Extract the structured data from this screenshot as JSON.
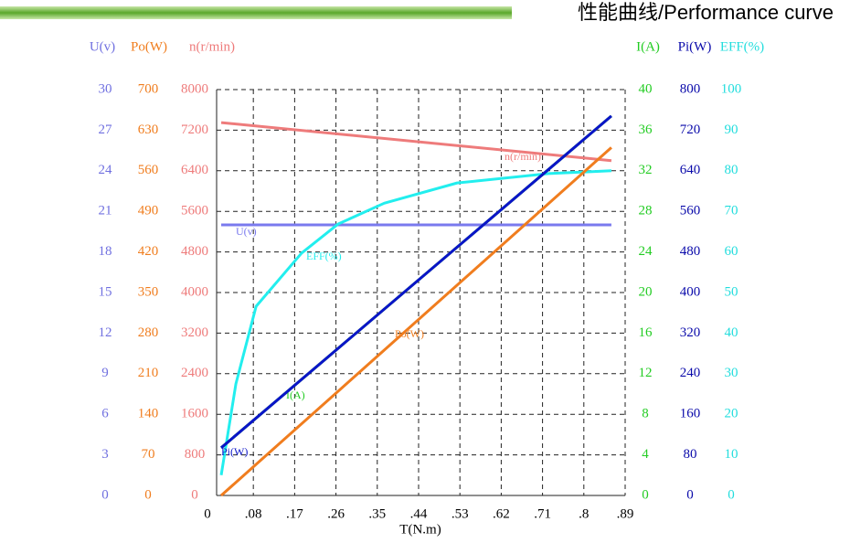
{
  "chart_data": {
    "type": "line",
    "title": "性能曲线/Performance curve",
    "x_label": "T(N.m)",
    "xlim": [
      0,
      0.89
    ],
    "xticks": [
      0,
      {
        "value": 0.08,
        "label": ".08"
      },
      {
        "value": 0.17,
        "label": ".17"
      },
      {
        "value": 0.26,
        "label": ".26"
      },
      {
        "value": 0.35,
        "label": ".35"
      },
      {
        "value": 0.44,
        "label": ".44"
      },
      {
        "value": 0.53,
        "label": ".53"
      },
      {
        "value": 0.62,
        "label": ".62"
      },
      {
        "value": 0.71,
        "label": ".71"
      },
      {
        "value": 0.8,
        "label": ".8"
      },
      {
        "value": 0.89,
        "label": ".89"
      }
    ],
    "grid": true,
    "y_axes": [
      {
        "label": "U(v)",
        "color": "#7070e0",
        "side": "left",
        "ylim": [
          0,
          30
        ],
        "yticks": [
          0,
          3,
          6,
          9,
          12,
          15,
          18,
          21,
          24,
          27,
          30
        ]
      },
      {
        "label": "Po(W)",
        "color": "#f07d1e",
        "side": "left",
        "ylim": [
          0,
          700
        ],
        "yticks": [
          0,
          70,
          140,
          210,
          280,
          350,
          420,
          490,
          560,
          630,
          700
        ]
      },
      {
        "label": "n(r/min)",
        "color": "#ee7b7b",
        "side": "left",
        "ylim": [
          0,
          8000
        ],
        "yticks": [
          0,
          800,
          1600,
          2400,
          3200,
          4000,
          4800,
          5600,
          6400,
          7200,
          8000
        ]
      },
      {
        "label": "I(A)",
        "color": "#22cc22",
        "side": "right",
        "ylim": [
          0,
          40
        ],
        "yticks": [
          0,
          4,
          8,
          12,
          16,
          20,
          24,
          28,
          32,
          36,
          40
        ]
      },
      {
        "label": "Pi(W)",
        "color": "#0a0aaa",
        "side": "right",
        "ylim": [
          0,
          800
        ],
        "yticks": [
          0,
          80,
          160,
          240,
          320,
          400,
          480,
          560,
          640,
          720,
          800
        ]
      },
      {
        "label": "EFF(%)",
        "color": "#22dddd",
        "side": "right",
        "ylim": [
          0,
          100
        ],
        "yticks": [
          0,
          10,
          20,
          30,
          40,
          50,
          60,
          70,
          80,
          90,
          100
        ]
      }
    ],
    "series": [
      {
        "name": "n(r/min)",
        "color": "#ee7b7b",
        "axis": 2,
        "x": [
          0.01,
          0.86
        ],
        "values": [
          7350,
          6600
        ]
      },
      {
        "name": "U(v)",
        "color": "#7a7aee",
        "axis": 0,
        "x": [
          0.01,
          0.86
        ],
        "values": [
          20,
          20
        ]
      },
      {
        "name": "EFF(%)",
        "color": "#22eeee",
        "axis": 5,
        "x": [
          0.01,
          0.042,
          0.086,
          0.185,
          0.265,
          0.365,
          0.524,
          0.723,
          0.86
        ],
        "values": [
          5,
          27.5,
          46.6,
          59.7,
          66.9,
          72,
          77,
          79.3,
          80
        ]
      },
      {
        "name": "I(A)",
        "color": "#22cc22",
        "axis": 3,
        "x": [
          0.01,
          0.86
        ],
        "values": [
          4.7,
          37.4
        ]
      },
      {
        "name": "Pi(W)",
        "color": "#0a14c8",
        "axis": 4,
        "x": [
          0.01,
          0.86
        ],
        "values": [
          94,
          748
        ]
      },
      {
        "name": "Po(W)",
        "color": "#f07d1e",
        "axis": 1,
        "x": [
          0.01,
          0.86
        ],
        "values": [
          0,
          600
        ]
      }
    ]
  }
}
